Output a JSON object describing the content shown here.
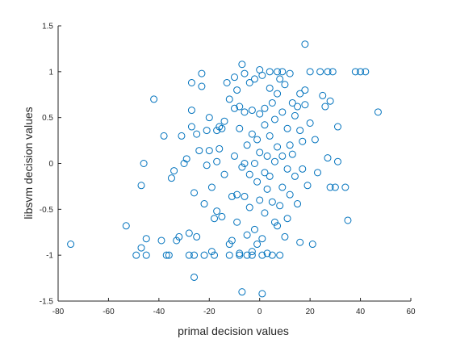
{
  "chart_data": {
    "type": "scatter",
    "title": "",
    "xlabel": "primal decision values",
    "ylabel": "libsvm decision values",
    "xlim": [
      -80,
      60
    ],
    "ylim": [
      -1.5,
      1.5
    ],
    "xticks": [
      -80,
      -60,
      -40,
      -20,
      0,
      20,
      40,
      60
    ],
    "yticks": [
      -1.5,
      -1,
      -0.5,
      0,
      0.5,
      1,
      1.5
    ],
    "xtick_labels": [
      "-80",
      "-60",
      "-40",
      "-20",
      "0",
      "20",
      "40",
      "60"
    ],
    "ytick_labels": [
      "-1.5",
      "-1",
      "-0.5",
      "0",
      "0.5",
      "1",
      "1.5"
    ],
    "grid": false,
    "marker": "circle",
    "marker_color": "#0072BD",
    "series": [
      {
        "points": [
          [
            -75,
            -0.88
          ],
          [
            -53,
            -0.68
          ],
          [
            -49,
            -1.0
          ],
          [
            -47,
            -0.92
          ],
          [
            -45,
            -1.0
          ],
          [
            -45,
            -0.82
          ],
          [
            -46,
            0.0
          ],
          [
            -47,
            -0.24
          ],
          [
            -42,
            0.7
          ],
          [
            -38,
            0.3
          ],
          [
            -39,
            -0.84
          ],
          [
            -37,
            -1.0
          ],
          [
            -36,
            -1.0
          ],
          [
            -35,
            -0.16
          ],
          [
            -34,
            -0.08
          ],
          [
            -33,
            -0.84
          ],
          [
            -32,
            -0.8
          ],
          [
            -31,
            0.3
          ],
          [
            -30,
            0.0
          ],
          [
            -29,
            0.05
          ],
          [
            -28,
            -0.76
          ],
          [
            -28,
            -1.0
          ],
          [
            -27,
            0.4
          ],
          [
            -27,
            0.58
          ],
          [
            -27,
            0.88
          ],
          [
            -26,
            -1.0
          ],
          [
            -26,
            -1.24
          ],
          [
            -26,
            -0.32
          ],
          [
            -25,
            0.32
          ],
          [
            -25,
            -0.8
          ],
          [
            -24,
            0.14
          ],
          [
            -23,
            0.98
          ],
          [
            -23,
            0.84
          ],
          [
            -22,
            -1.0
          ],
          [
            -22,
            -0.44
          ],
          [
            -21,
            0.36
          ],
          [
            -21,
            -0.02
          ],
          [
            -20,
            0.5
          ],
          [
            -20,
            0.14
          ],
          [
            -19,
            -0.26
          ],
          [
            -19,
            -0.96
          ],
          [
            -18,
            -0.6
          ],
          [
            -18,
            -1.0
          ],
          [
            -17,
            0.02
          ],
          [
            -17,
            -0.52
          ],
          [
            -17,
            0.36
          ],
          [
            -16,
            0.4
          ],
          [
            -16,
            0.16
          ],
          [
            -15,
            0.38
          ],
          [
            -15,
            -0.58
          ],
          [
            -14,
            0.46
          ],
          [
            -14,
            -0.12
          ],
          [
            -13,
            0.88
          ],
          [
            -12,
            0.7
          ],
          [
            -12,
            -1.0
          ],
          [
            -12,
            -0.88
          ],
          [
            -11,
            -0.36
          ],
          [
            -11,
            -0.84
          ],
          [
            -10,
            0.94
          ],
          [
            -10,
            0.6
          ],
          [
            -10,
            0.08
          ],
          [
            -9,
            -0.34
          ],
          [
            -9,
            -0.64
          ],
          [
            -9,
            0.8
          ],
          [
            -8,
            -0.98
          ],
          [
            -8,
            -1.0
          ],
          [
            -8,
            0.62
          ],
          [
            -8,
            0.38
          ],
          [
            -7,
            1.08
          ],
          [
            -7,
            -1.4
          ],
          [
            -7,
            -0.04
          ],
          [
            -6,
            0.98
          ],
          [
            -6,
            0.56
          ],
          [
            -6,
            0.0
          ],
          [
            -6,
            -0.36
          ],
          [
            -5,
            -1.0
          ],
          [
            -5,
            -0.78
          ],
          [
            -5,
            0.2
          ],
          [
            -4,
            0.88
          ],
          [
            -4,
            -0.12
          ],
          [
            -4,
            -0.48
          ],
          [
            -3,
            0.58
          ],
          [
            -3,
            0.32
          ],
          [
            -3,
            -0.96
          ],
          [
            -3,
            -1.0
          ],
          [
            -2,
            0.0
          ],
          [
            -2,
            0.92
          ],
          [
            -2,
            -0.72
          ],
          [
            -1,
            0.26
          ],
          [
            -1,
            -0.2
          ],
          [
            -1,
            -0.88
          ],
          [
            0,
            1.02
          ],
          [
            0,
            0.54
          ],
          [
            0,
            0.12
          ],
          [
            0,
            -0.4
          ],
          [
            1,
            -1.0
          ],
          [
            1,
            -1.42
          ],
          [
            1,
            -0.82
          ],
          [
            1,
            0.96
          ],
          [
            2,
            0.6
          ],
          [
            2,
            0.42
          ],
          [
            2,
            -0.1
          ],
          [
            2,
            -0.54
          ],
          [
            3,
            0.08
          ],
          [
            3,
            -0.28
          ],
          [
            3,
            -0.98
          ],
          [
            4,
            0.82
          ],
          [
            4,
            1.0
          ],
          [
            4,
            0.3
          ],
          [
            4,
            -0.14
          ],
          [
            5,
            0.66
          ],
          [
            5,
            -0.42
          ],
          [
            5,
            -1.0
          ],
          [
            6,
            -0.64
          ],
          [
            6,
            0.48
          ],
          [
            6,
            0.02
          ],
          [
            7,
            1.0
          ],
          [
            7,
            0.76
          ],
          [
            7,
            0.18
          ],
          [
            7,
            -0.68
          ],
          [
            8,
            0.92
          ],
          [
            8,
            -0.46
          ],
          [
            8,
            -1.0
          ],
          [
            9,
            1.0
          ],
          [
            9,
            0.56
          ],
          [
            9,
            0.08
          ],
          [
            9,
            -0.26
          ],
          [
            10,
            0.86
          ],
          [
            10,
            -0.8
          ],
          [
            11,
            0.38
          ],
          [
            11,
            -0.06
          ],
          [
            11,
            -0.6
          ],
          [
            12,
            0.2
          ],
          [
            12,
            -0.34
          ],
          [
            12,
            0.98
          ],
          [
            13,
            0.66
          ],
          [
            13,
            0.1
          ],
          [
            14,
            -0.14
          ],
          [
            14,
            0.52
          ],
          [
            15,
            0.62
          ],
          [
            15,
            -0.44
          ],
          [
            16,
            0.76
          ],
          [
            16,
            0.36
          ],
          [
            16,
            -0.86
          ],
          [
            17,
            0.24
          ],
          [
            17,
            -0.06
          ],
          [
            18,
            0.8
          ],
          [
            18,
            0.64
          ],
          [
            18,
            1.3
          ],
          [
            19,
            -0.24
          ],
          [
            20,
            1.0
          ],
          [
            20,
            0.44
          ],
          [
            21,
            -0.88
          ],
          [
            22,
            0.26
          ],
          [
            23,
            -0.1
          ],
          [
            24,
            1.0
          ],
          [
            25,
            0.74
          ],
          [
            26,
            0.62
          ],
          [
            27,
            1.0
          ],
          [
            27,
            0.06
          ],
          [
            28,
            0.68
          ],
          [
            28,
            -0.26
          ],
          [
            29,
            1.0
          ],
          [
            30,
            -0.26
          ],
          [
            31,
            0.02
          ],
          [
            31,
            0.4
          ],
          [
            34,
            -0.26
          ],
          [
            35,
            -0.62
          ],
          [
            38,
            1.0
          ],
          [
            40,
            1.0
          ],
          [
            42,
            1.0
          ],
          [
            47,
            0.56
          ]
        ]
      }
    ]
  }
}
